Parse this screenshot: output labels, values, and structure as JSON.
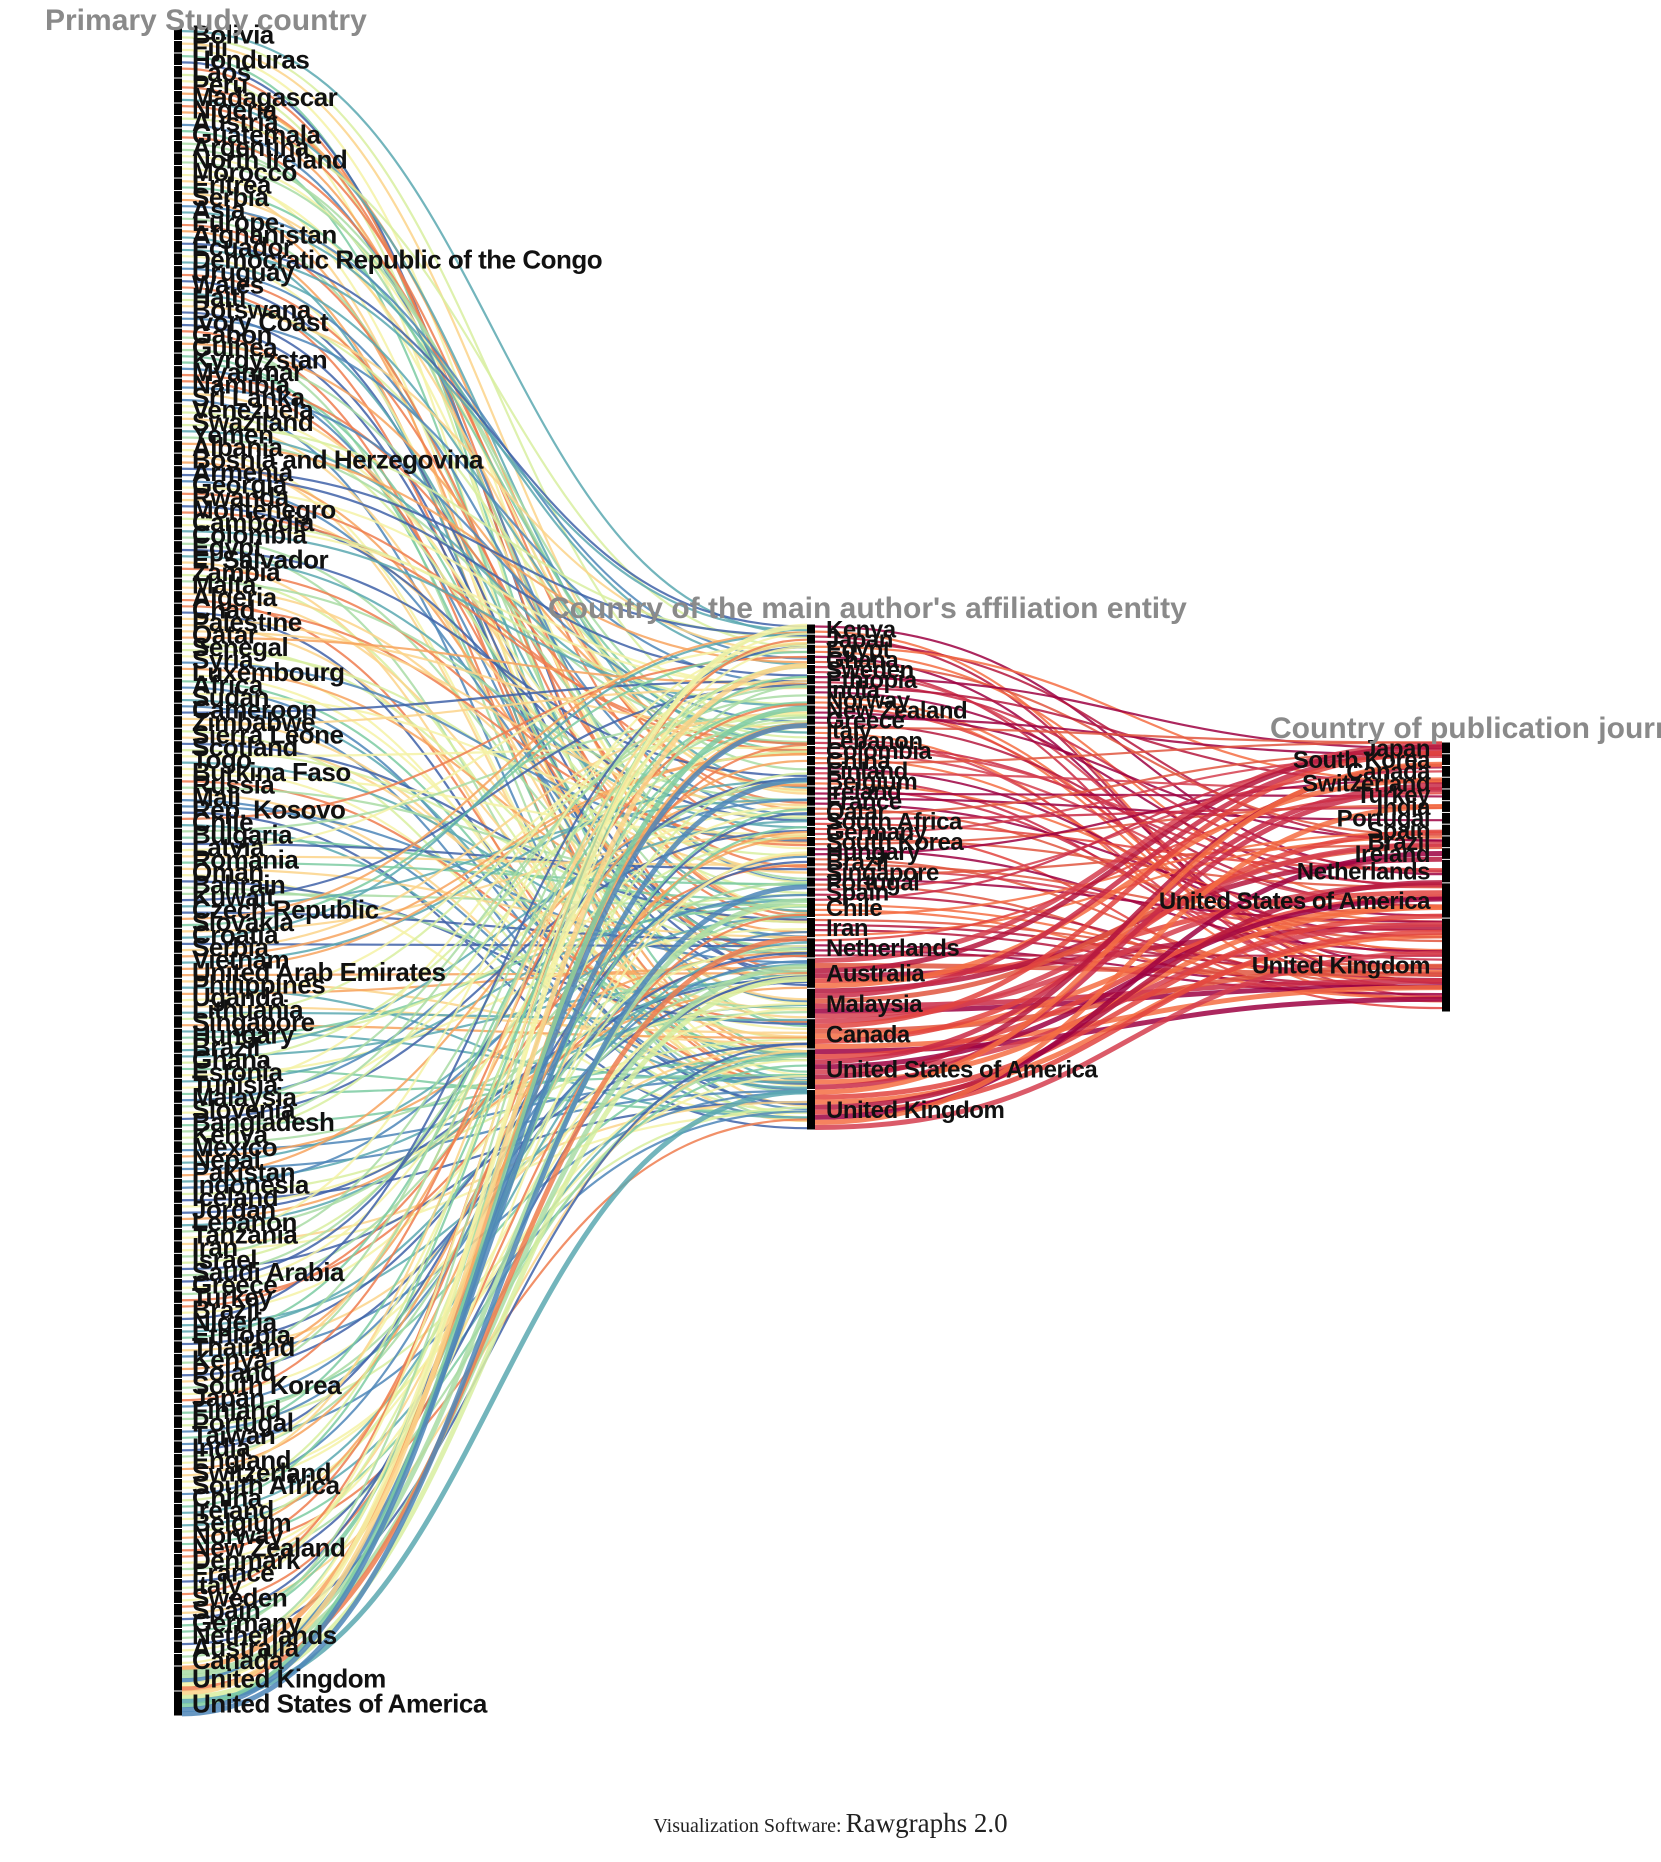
{
  "columns": [
    {
      "title": "Primary Study country",
      "nodes": [
        "Bolivia",
        "Fiji",
        "Honduras",
        "Laos",
        "Peru",
        "Madagascar",
        "Nigeria",
        "Austria",
        "Guatemala",
        "Argentina",
        "North Ireland",
        "Morocco",
        "Eritrea",
        "Serbia",
        "Asia",
        "Europe",
        "Afghanistan",
        "Ecuador",
        "Democratic Republic of the Congo",
        "Uruguay",
        "Wales",
        "Haiti",
        "Botswana",
        "Ivory Coast",
        "Gabon",
        "Guinea",
        "Kyrgyzstan",
        "Myanmar",
        "Namibia",
        "Sri Lanka",
        "Venezuela",
        "Swaziland",
        "Yemen",
        "Albania",
        "Bosnia and Herzegovina",
        "Armenia",
        "Georgia",
        "Rwanda",
        "Montenegro",
        "Cambodia",
        "Colombia",
        "Egypt",
        "El Salvador",
        "Zambia",
        "Malta",
        "Algeria",
        "Chad",
        "Palestine",
        "Qatar",
        "Senegal",
        "Syria",
        "Luxembourg",
        "Africa",
        "Sudan",
        "Cameroon",
        "Zimbabwe",
        "Sierra Leone",
        "Scotland",
        "Togo",
        "Burkina Faso",
        "Russia",
        "Mali",
        "Rep. Kosovo",
        "Chile",
        "Bulgaria",
        "Latvia",
        "Romania",
        "Oman",
        "Bahrain",
        "Kuwait",
        "Czech Republic",
        "Slovakia",
        "Croatia",
        "Serbia",
        "Vietnam",
        "United Arab Emirates",
        "Philippines",
        "Uganda",
        "Lithuania",
        "Singapore",
        "Hungary",
        "Brazil",
        "Ghana",
        "Estonia",
        "Tunisia",
        "Malaysia",
        "Slovenia",
        "Bangladesh",
        "Kenya",
        "Mexico",
        "Nepal",
        "Pakistan",
        "Indonesia",
        "Iceland",
        "Jordan",
        "Lebanon",
        "Tanzania",
        "Iran",
        "Israel",
        "Saudi Arabia",
        "Greece",
        "Turkey",
        "Brazil",
        "Nigeria",
        "Ethiopia",
        "Thailand",
        "Kenya",
        "Poland",
        "South Korea",
        "Japan",
        "Finland",
        "Portugal",
        "Taiwan",
        "India",
        "England",
        "Switzerland",
        "South Africa",
        "China",
        "Ireland",
        "Belgium",
        "Norway",
        "New Zealand",
        "Denmark",
        "France",
        "Italy",
        "Sweden",
        "Spain",
        "Germany",
        "Netherlands",
        "Australia",
        "Canada",
        "United Kingdom",
        "United States of America"
      ],
      "weights": [
        1,
        1,
        1,
        1,
        1,
        1,
        1,
        1,
        1,
        1,
        1,
        1,
        1,
        1,
        1,
        1,
        1,
        1,
        1,
        1,
        1,
        1,
        1,
        1,
        1,
        1,
        1,
        1,
        1,
        1,
        1,
        1,
        1,
        1,
        1,
        1,
        1,
        1,
        1,
        1,
        1,
        1,
        1,
        1,
        1,
        1,
        1,
        1,
        1,
        1,
        1,
        1,
        1,
        1,
        1,
        1,
        1,
        1,
        1,
        1,
        1,
        1,
        1,
        1,
        1,
        1,
        1,
        1,
        1,
        1,
        1,
        1,
        1,
        1,
        1,
        1,
        1,
        1,
        1,
        1,
        1,
        1,
        1,
        1,
        1,
        1,
        1,
        1,
        1,
        1,
        1,
        1,
        1,
        1,
        1,
        1,
        1,
        1,
        1,
        1,
        1,
        1,
        1,
        1,
        1,
        1,
        1,
        1,
        1,
        1,
        1,
        1,
        1,
        1,
        1,
        1,
        1,
        1,
        1,
        1,
        1,
        1,
        1,
        1,
        1,
        1,
        1,
        1,
        1,
        1,
        1,
        2,
        2
      ]
    },
    {
      "title": "Country of the main author's affiliation entity",
      "nodes": [
        "Kenya",
        "Japan",
        "Egypt",
        "Ghana",
        "Sweden",
        "Ethiopia",
        "India",
        "Norway",
        "New Zealand",
        "Greece",
        "Italy",
        "Lebanon",
        "Colombia",
        "China",
        "Finland",
        "Belgium",
        "Ireland",
        "France",
        "Qatar",
        "South Africa",
        "Germany",
        "South Korea",
        "Hungary",
        "Brazil",
        "Singapore",
        "Portugal",
        "Spain",
        "Chile",
        "Iran",
        "Netherlands",
        "Australia",
        "Malaysia",
        "Canada",
        "United States of America",
        "United Kingdom"
      ],
      "weights": [
        1,
        1,
        1,
        1,
        1,
        1,
        1,
        1,
        1,
        1,
        1,
        1,
        1,
        1,
        1,
        1,
        1,
        1,
        1,
        1,
        1,
        1,
        1,
        1,
        1,
        1,
        1,
        2,
        2,
        2,
        3,
        3,
        3,
        4,
        4
      ]
    },
    {
      "title": "Country of publication journal",
      "nodes": [
        "Japan",
        "South Korea",
        "Canada",
        "Switzerland",
        "Turkey",
        "India",
        "Portugal",
        "Spain",
        "Brazil",
        "Ireland",
        "Netherlands",
        "United States of America",
        "United Kingdom"
      ],
      "weights": [
        1,
        1,
        1,
        1,
        1,
        1,
        1,
        1,
        1,
        1,
        2,
        3,
        8
      ]
    }
  ],
  "colors": {
    "left_palette": [
      "#3f62a8",
      "#4d86b8",
      "#5ba8b0",
      "#7ccba2",
      "#a9dca4",
      "#d8eea0",
      "#f4f2a6",
      "#fbd38a",
      "#f7a35e",
      "#ef7c4f"
    ],
    "right_palette": [
      "#9e0142",
      "#b5173e",
      "#c92a47",
      "#d53e4f",
      "#e0563f",
      "#f46d43",
      "#e2443f"
    ],
    "node_bar": "#000000",
    "column_title": "#8a8a8a"
  },
  "footer": {
    "prefix": "Visualization Software:",
    "software": "Rawgraphs 2.0"
  }
}
